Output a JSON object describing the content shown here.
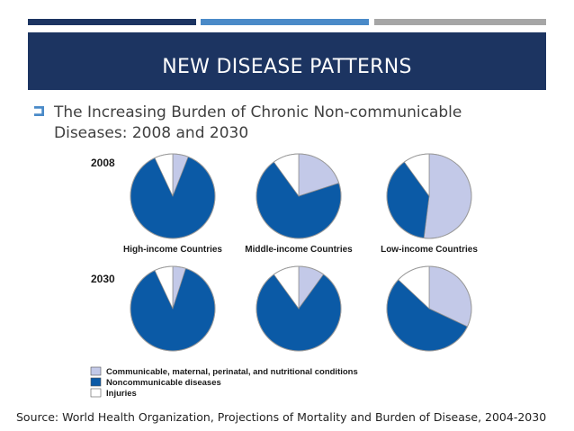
{
  "slide": {
    "title": "NEW DISEASE PATTERNS",
    "bullet": "The Increasing Burden of Chronic Non-communicable Diseases: 2008 and 2030",
    "source": "Source: World Health Organization, Projections of Mortality and Burden of Disease, 2004-2030",
    "accent_colors": {
      "dark_navy": "#1c3461",
      "mid_blue": "#4a8ac8",
      "gray": "#a6a6a6"
    }
  },
  "chart_data": {
    "type": "pie",
    "title": "The Increasing Burden of Chronic Non-communicable Diseases: 2008 and 2030",
    "row_labels": [
      "2008",
      "2030"
    ],
    "column_labels": [
      "High-income Countries",
      "Middle-income Countries",
      "Low-income Countries"
    ],
    "legend": [
      {
        "name": "Communicable, maternal, perinatal, and nutritional conditions",
        "color": "#c3c9e8"
      },
      {
        "name": "Noncommunicable diseases",
        "color": "#0b5aa6"
      },
      {
        "name": "Injuries",
        "color": "#ffffff"
      }
    ],
    "series_order": [
      "Communicable, maternal, perinatal, and nutritional conditions",
      "Noncommunicable diseases",
      "Injuries"
    ],
    "pies": [
      {
        "year": "2008",
        "group": "High-income Countries",
        "values": [
          6,
          87,
          7
        ]
      },
      {
        "year": "2008",
        "group": "Middle-income Countries",
        "values": [
          20,
          70,
          10
        ]
      },
      {
        "year": "2008",
        "group": "Low-income Countries",
        "values": [
          52,
          38,
          10
        ]
      },
      {
        "year": "2030",
        "group": "High-income Countries",
        "values": [
          5,
          88,
          7
        ]
      },
      {
        "year": "2030",
        "group": "Middle-income Countries",
        "values": [
          10,
          80,
          10
        ]
      },
      {
        "year": "2030",
        "group": "Low-income Countries",
        "values": [
          32,
          55,
          13
        ]
      }
    ]
  }
}
